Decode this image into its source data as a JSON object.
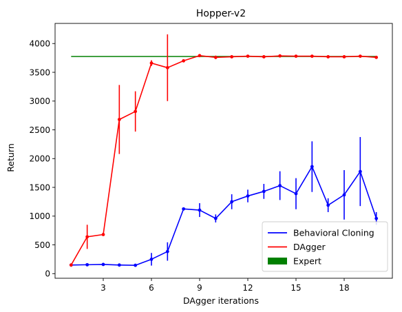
{
  "chart_data": {
    "type": "line",
    "title": "Hopper-v2",
    "xlabel": "DAgger iterations",
    "ylabel": "Return",
    "xlim": [
      0.0,
      21.0
    ],
    "ylim": [
      -80,
      4350
    ],
    "xticks": [
      3,
      6,
      9,
      12,
      15,
      18
    ],
    "yticks": [
      0,
      500,
      1000,
      1500,
      2000,
      2500,
      3000,
      3500,
      4000
    ],
    "grid": false,
    "legend_position": "lower-right",
    "x": [
      1,
      2,
      3,
      4,
      5,
      6,
      7,
      8,
      9,
      10,
      11,
      12,
      13,
      14,
      15,
      16,
      17,
      18,
      19,
      20
    ],
    "series": [
      {
        "name": "Behavioral Cloning",
        "color": "#0000ff",
        "values": [
          150,
          155,
          160,
          150,
          145,
          250,
          385,
          1125,
          1105,
          960,
          1250,
          1350,
          1430,
          1530,
          1390,
          1860,
          1190,
          1370,
          1775,
          960
        ],
        "errors": [
          0,
          0,
          0,
          0,
          0,
          110,
          160,
          0,
          120,
          70,
          130,
          110,
          130,
          250,
          270,
          440,
          120,
          430,
          600,
          110
        ]
      },
      {
        "name": "DAgger",
        "color": "#ff0000",
        "values": [
          150,
          640,
          680,
          2680,
          2820,
          3660,
          3580,
          3700,
          3790,
          3760,
          3770,
          3780,
          3770,
          3785,
          3780,
          3780,
          3770,
          3770,
          3780,
          3760
        ],
        "errors": [
          0,
          210,
          0,
          600,
          350,
          50,
          580,
          0,
          25,
          30,
          0,
          0,
          0,
          25,
          20,
          25,
          0,
          0,
          0,
          0
        ]
      }
    ],
    "reference": {
      "name": "Expert",
      "color": "#008000",
      "value": 3775,
      "x_range": [
        1,
        20
      ]
    }
  }
}
